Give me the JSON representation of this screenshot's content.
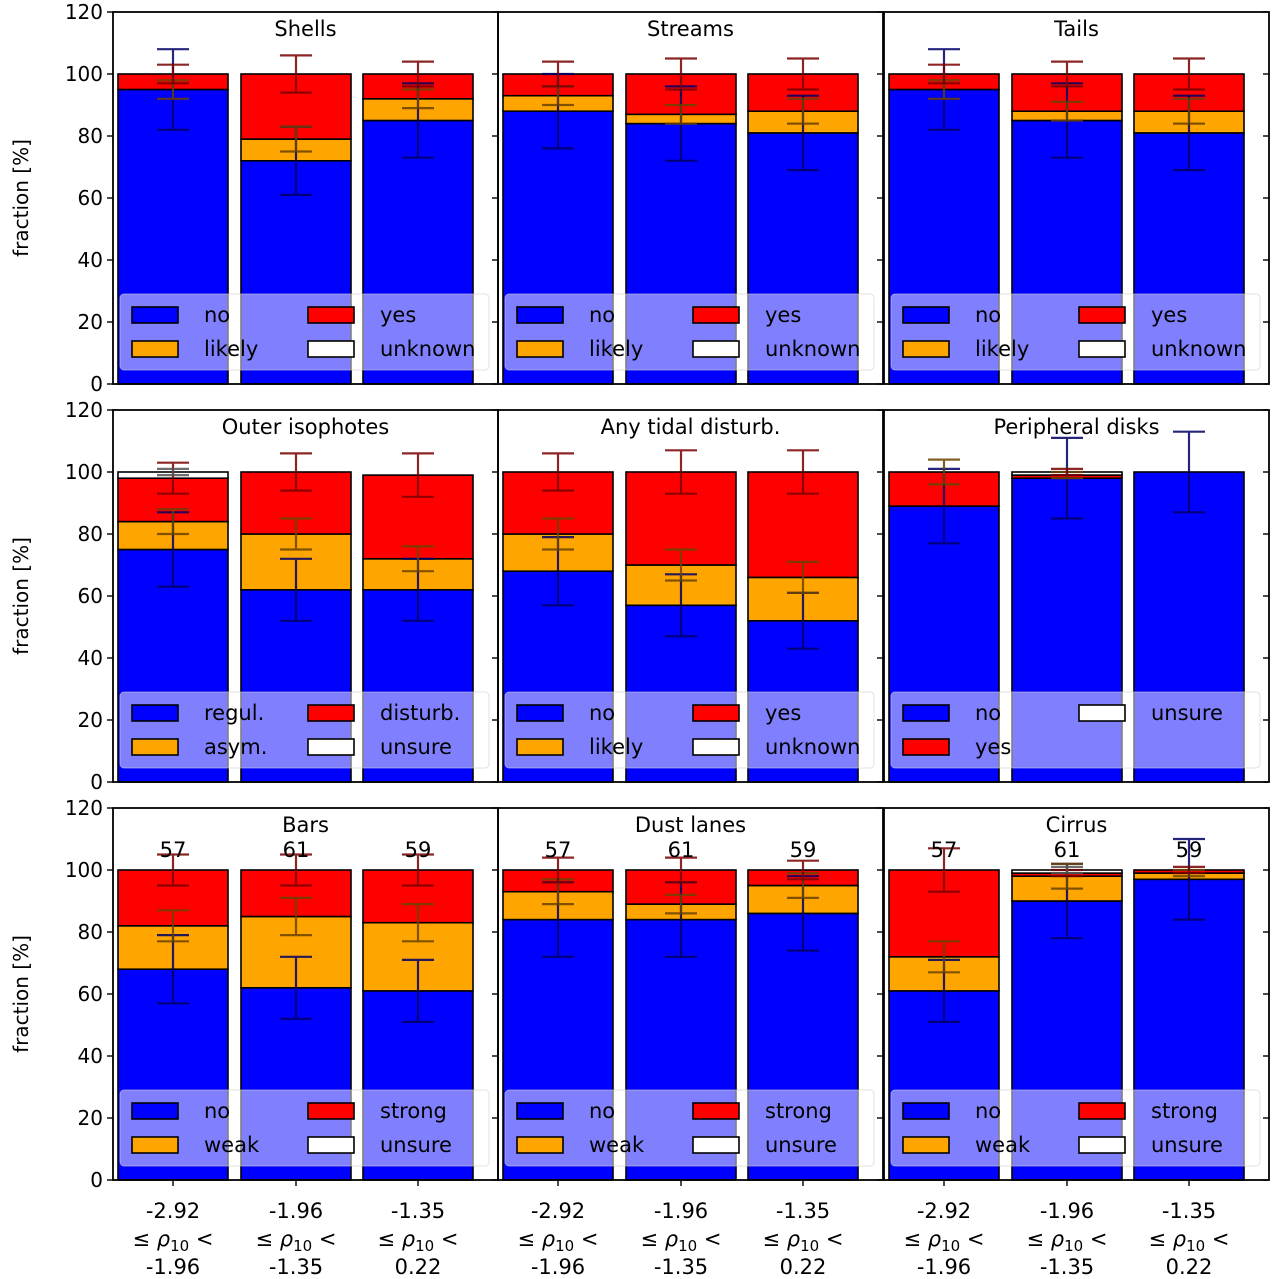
{
  "figure": {
    "ylabel": "fraction [%]",
    "yticks": [
      "0",
      "20",
      "40",
      "60",
      "80",
      "100",
      "120"
    ],
    "xtick_labels": [
      [
        "-2.92",
        "≤ ρ",
        "10",
        " <",
        "-1.96"
      ],
      [
        "-1.96",
        "≤ ρ",
        "10",
        " <",
        "-1.35"
      ],
      [
        "-1.35",
        "≤ ρ",
        "10",
        " <",
        "0.22"
      ]
    ]
  },
  "colors": {
    "no": "#0000ff",
    "likely": "#ffa500",
    "yes": "#ff0000",
    "unknown": "#ffffff"
  },
  "chart_data": [
    {
      "type": "bar",
      "title": "Shells",
      "ylabel": "fraction [%]",
      "ylim": [
        0,
        120
      ],
      "categories": [
        "-2.92 ≤ ρ10 < -1.96",
        "-1.96 ≤ ρ10 < -1.35",
        "-1.35 ≤ ρ10 < 0.22"
      ],
      "stacked": true,
      "series": [
        {
          "name": "no",
          "color": "#0000ff",
          "values": [
            95,
            72,
            85
          ],
          "err": [
            13,
            11,
            12
          ]
        },
        {
          "name": "likely",
          "color": "#ffa500",
          "values": [
            0,
            7,
            7
          ],
          "err": [
            3,
            4,
            3
          ]
        },
        {
          "name": "yes",
          "color": "#ff0000",
          "values": [
            5,
            21,
            8
          ],
          "err": [
            3,
            6,
            4
          ]
        },
        {
          "name": "unknown",
          "color": "#ffffff",
          "values": [
            0,
            0,
            0
          ],
          "err": [
            0,
            0,
            0
          ]
        }
      ],
      "legend": [
        [
          "no",
          "yes"
        ],
        [
          "likely",
          "unknown"
        ]
      ],
      "legend_loc": "lower center"
    },
    {
      "type": "bar",
      "title": "Streams",
      "ylim": [
        0,
        120
      ],
      "stacked": true,
      "series": [
        {
          "name": "no",
          "color": "#0000ff",
          "values": [
            88,
            84,
            81
          ],
          "err": [
            12,
            12,
            12
          ]
        },
        {
          "name": "likely",
          "color": "#ffa500",
          "values": [
            5,
            3,
            7
          ],
          "err": [
            3,
            3,
            4
          ]
        },
        {
          "name": "yes",
          "color": "#ff0000",
          "values": [
            7,
            13,
            12
          ],
          "err": [
            4,
            5,
            5
          ]
        },
        {
          "name": "unknown",
          "color": "#ffffff",
          "values": [
            0,
            0,
            0
          ],
          "err": [
            0,
            0,
            0
          ]
        }
      ],
      "legend": [
        [
          "no",
          "yes"
        ],
        [
          "likely",
          "unknown"
        ]
      ],
      "legend_loc": "lower center"
    },
    {
      "type": "bar",
      "title": "Tails",
      "ylim": [
        0,
        120
      ],
      "stacked": true,
      "series": [
        {
          "name": "no",
          "color": "#0000ff",
          "values": [
            95,
            85,
            81
          ],
          "err": [
            13,
            12,
            12
          ]
        },
        {
          "name": "likely",
          "color": "#ffa500",
          "values": [
            0,
            3,
            7
          ],
          "err": [
            3,
            3,
            4
          ]
        },
        {
          "name": "yes",
          "color": "#ff0000",
          "values": [
            5,
            12,
            12
          ],
          "err": [
            3,
            4,
            5
          ]
        },
        {
          "name": "unknown",
          "color": "#ffffff",
          "values": [
            0,
            0,
            0
          ],
          "err": [
            0,
            0,
            0
          ]
        }
      ],
      "legend": [
        [
          "no",
          "yes"
        ],
        [
          "likely",
          "unknown"
        ]
      ],
      "legend_loc": "lower center"
    },
    {
      "type": "bar",
      "title": "Outer isophotes",
      "ylabel": "fraction [%]",
      "ylim": [
        0,
        120
      ],
      "stacked": true,
      "series": [
        {
          "name": "regul.",
          "color": "#0000ff",
          "values": [
            75,
            62,
            62
          ],
          "err": [
            12,
            10,
            10
          ]
        },
        {
          "name": "asym.",
          "color": "#ffa500",
          "values": [
            9,
            18,
            10
          ],
          "err": [
            4,
            5,
            4
          ]
        },
        {
          "name": "disturb.",
          "color": "#ff0000",
          "values": [
            14,
            20,
            27
          ],
          "err": [
            5,
            6,
            7
          ]
        },
        {
          "name": "unsure",
          "color": "#ffffff",
          "values": [
            2,
            0,
            0
          ],
          "err": [
            1,
            0,
            0
          ]
        }
      ],
      "legend": [
        [
          "regul.",
          "disturb."
        ],
        [
          "asym.",
          "unsure"
        ]
      ],
      "legend_loc": "lower center"
    },
    {
      "type": "bar",
      "title": "Any tidal disturb.",
      "ylim": [
        0,
        120
      ],
      "stacked": true,
      "series": [
        {
          "name": "no",
          "color": "#0000ff",
          "values": [
            68,
            57,
            52
          ],
          "err": [
            11,
            10,
            9
          ]
        },
        {
          "name": "likely",
          "color": "#ffa500",
          "values": [
            12,
            13,
            14
          ],
          "err": [
            5,
            5,
            5
          ]
        },
        {
          "name": "yes",
          "color": "#ff0000",
          "values": [
            20,
            30,
            34
          ],
          "err": [
            6,
            7,
            7
          ]
        },
        {
          "name": "unknown",
          "color": "#ffffff",
          "values": [
            0,
            0,
            0
          ],
          "err": [
            0,
            0,
            0
          ]
        }
      ],
      "legend": [
        [
          "no",
          "yes"
        ],
        [
          "likely",
          "unknown"
        ]
      ],
      "legend_loc": "lower center"
    },
    {
      "type": "bar",
      "title": "Peripheral disks",
      "ylim": [
        0,
        120
      ],
      "stacked": true,
      "series": [
        {
          "name": "no",
          "color": "#0000ff",
          "values": [
            89,
            98,
            100
          ],
          "err": [
            12,
            13,
            13
          ]
        },
        {
          "name": "yes",
          "color": "#ff0000",
          "values": [
            11,
            1,
            0
          ],
          "err": [
            4,
            1,
            0
          ]
        },
        {
          "name": "unsure",
          "color": "#ffffff",
          "values": [
            0,
            1,
            0
          ],
          "err": [
            0,
            1,
            0
          ]
        }
      ],
      "legend": [
        [
          "no",
          "unsure"
        ],
        [
          "yes",
          ""
        ]
      ],
      "legend_loc": "lower center"
    },
    {
      "type": "bar",
      "title": "Bars",
      "ylabel": "fraction [%]",
      "ylim": [
        0,
        120
      ],
      "stacked": true,
      "counts": [
        "57",
        "61",
        "59"
      ],
      "series": [
        {
          "name": "no",
          "color": "#0000ff",
          "values": [
            68,
            62,
            61
          ],
          "err": [
            11,
            10,
            10
          ]
        },
        {
          "name": "weak",
          "color": "#ffa500",
          "values": [
            14,
            23,
            22
          ],
          "err": [
            5,
            6,
            6
          ]
        },
        {
          "name": "strong",
          "color": "#ff0000",
          "values": [
            18,
            15,
            17
          ],
          "err": [
            5,
            5,
            5
          ]
        },
        {
          "name": "unsure",
          "color": "#ffffff",
          "values": [
            0,
            0,
            0
          ],
          "err": [
            0,
            0,
            0
          ]
        }
      ],
      "legend": [
        [
          "no",
          "strong"
        ],
        [
          "weak",
          "unsure"
        ]
      ],
      "legend_loc": "lower center"
    },
    {
      "type": "bar",
      "title": "Dust lanes",
      "ylim": [
        0,
        120
      ],
      "stacked": true,
      "counts": [
        "57",
        "61",
        "59"
      ],
      "series": [
        {
          "name": "no",
          "color": "#0000ff",
          "values": [
            84,
            84,
            86
          ],
          "err": [
            12,
            12,
            12
          ]
        },
        {
          "name": "weak",
          "color": "#ffa500",
          "values": [
            9,
            5,
            9
          ],
          "err": [
            4,
            3,
            4
          ]
        },
        {
          "name": "strong",
          "color": "#ff0000",
          "values": [
            7,
            11,
            5
          ],
          "err": [
            4,
            4,
            3
          ]
        },
        {
          "name": "unsure",
          "color": "#ffffff",
          "values": [
            0,
            0,
            0
          ],
          "err": [
            0,
            0,
            0
          ]
        }
      ],
      "legend": [
        [
          "no",
          "strong"
        ],
        [
          "weak",
          "unsure"
        ]
      ],
      "legend_loc": "lower center"
    },
    {
      "type": "bar",
      "title": "Cirrus",
      "ylim": [
        0,
        120
      ],
      "stacked": true,
      "counts": [
        "57",
        "61",
        "59"
      ],
      "series": [
        {
          "name": "no",
          "color": "#0000ff",
          "values": [
            61,
            90,
            97
          ],
          "err": [
            10,
            12,
            13
          ]
        },
        {
          "name": "weak",
          "color": "#ffa500",
          "values": [
            11,
            8,
            2
          ],
          "err": [
            5,
            4,
            1
          ]
        },
        {
          "name": "strong",
          "color": "#ff0000",
          "values": [
            28,
            1,
            1
          ],
          "err": [
            7,
            1,
            1
          ]
        },
        {
          "name": "unsure",
          "color": "#ffffff",
          "values": [
            0,
            1,
            0
          ],
          "err": [
            0,
            1,
            0
          ]
        }
      ],
      "legend": [
        [
          "no",
          "strong"
        ],
        [
          "weak",
          "unsure"
        ]
      ],
      "legend_loc": "lower center"
    }
  ]
}
